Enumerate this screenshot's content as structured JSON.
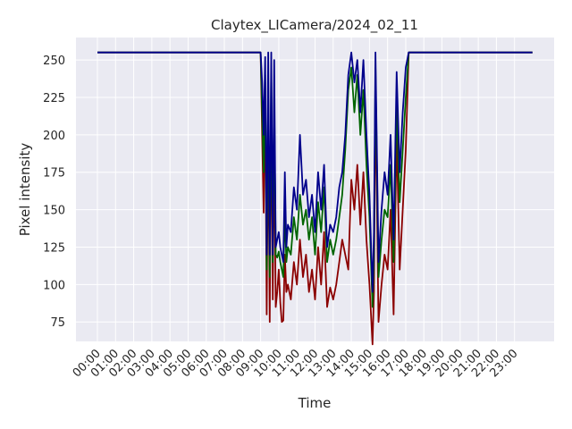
{
  "chart_data": {
    "type": "line",
    "title": "Claytex_LICamera/2024_02_11",
    "xlabel": "Time",
    "ylabel": "Pixel intensity",
    "x_tick_labels": [
      "00:00",
      "01:00",
      "02:00",
      "03:00",
      "04:00",
      "05:00",
      "06:00",
      "07:00",
      "08:00",
      "09:00",
      "10:00",
      "11:00",
      "12:00",
      "13:00",
      "14:00",
      "15:00",
      "16:00",
      "17:00",
      "18:00",
      "19:00",
      "20:00",
      "21:00",
      "22:00",
      "23:00"
    ],
    "y_ticks": [
      75,
      100,
      125,
      150,
      175,
      200,
      225,
      250
    ],
    "xlim": [
      "2024-02-11 00:00",
      "2024-02-12 00:00"
    ],
    "ylim": [
      62,
      265
    ],
    "grid": true,
    "colors": {
      "background": "#EAEAF2",
      "grid": "#FFFFFF",
      "red": "#8B0000",
      "green": "#006400",
      "blue": "#00008B"
    },
    "series": [
      {
        "color": "#8B0000",
        "x": [
          "2024-02-11 00:00",
          "2024-02-11 09:00",
          "2024-02-11 09:05",
          "2024-02-11 09:10",
          "2024-02-11 09:15",
          "2024-02-11 09:20",
          "2024-02-11 09:25",
          "2024-02-11 09:30",
          "2024-02-11 09:35",
          "2024-02-11 09:40",
          "2024-02-11 09:45",
          "2024-02-11 09:50",
          "2024-02-11 09:55",
          "2024-02-11 10:00",
          "2024-02-11 10:05",
          "2024-02-11 10:10",
          "2024-02-11 10:15",
          "2024-02-11 10:20",
          "2024-02-11 10:25",
          "2024-02-11 10:30",
          "2024-02-11 10:40",
          "2024-02-11 10:50",
          "2024-02-11 11:00",
          "2024-02-11 11:10",
          "2024-02-11 11:20",
          "2024-02-11 11:30",
          "2024-02-11 11:40",
          "2024-02-11 11:50",
          "2024-02-11 12:00",
          "2024-02-11 12:10",
          "2024-02-11 12:20",
          "2024-02-11 12:30",
          "2024-02-11 12:40",
          "2024-02-11 12:50",
          "2024-02-11 13:00",
          "2024-02-11 13:10",
          "2024-02-11 13:20",
          "2024-02-11 13:30",
          "2024-02-11 13:40",
          "2024-02-11 13:50",
          "2024-02-11 14:00",
          "2024-02-11 14:10",
          "2024-02-11 14:20",
          "2024-02-11 14:30",
          "2024-02-11 14:40",
          "2024-02-11 14:50",
          "2024-02-11 15:00",
          "2024-02-11 15:10",
          "2024-02-11 15:15",
          "2024-02-11 15:20",
          "2024-02-11 15:30",
          "2024-02-11 15:40",
          "2024-02-11 15:50",
          "2024-02-11 16:00",
          "2024-02-11 16:10",
          "2024-02-11 16:20",
          "2024-02-11 16:30",
          "2024-02-11 16:40",
          "2024-02-11 16:50",
          "2024-02-11 17:00",
          "2024-02-11 17:10",
          "2024-02-11 23:59"
        ],
        "y": [
          255,
          255,
          200,
          148,
          235,
          80,
          210,
          75,
          230,
          90,
          200,
          85,
          95,
          110,
          88,
          75,
          76,
          120,
          95,
          100,
          90,
          115,
          100,
          130,
          105,
          120,
          95,
          110,
          90,
          125,
          100,
          135,
          85,
          98,
          90,
          100,
          115,
          130,
          120,
          110,
          170,
          150,
          180,
          140,
          175,
          130,
          100,
          60,
          95,
          230,
          75,
          100,
          120,
          110,
          150,
          80,
          200,
          110,
          150,
          190,
          255,
          255
        ]
      },
      {
        "color": "#006400",
        "x": [
          "2024-02-11 00:00",
          "2024-02-11 09:00",
          "2024-02-11 09:05",
          "2024-02-11 09:10",
          "2024-02-11 09:15",
          "2024-02-11 09:20",
          "2024-02-11 09:25",
          "2024-02-11 09:30",
          "2024-02-11 09:35",
          "2024-02-11 09:40",
          "2024-02-11 09:45",
          "2024-02-11 09:50",
          "2024-02-11 09:55",
          "2024-02-11 10:00",
          "2024-02-11 10:05",
          "2024-02-11 10:10",
          "2024-02-11 10:15",
          "2024-02-11 10:20",
          "2024-02-11 10:25",
          "2024-02-11 10:30",
          "2024-02-11 10:40",
          "2024-02-11 10:50",
          "2024-02-11 11:00",
          "2024-02-11 11:10",
          "2024-02-11 11:20",
          "2024-02-11 11:30",
          "2024-02-11 11:40",
          "2024-02-11 11:50",
          "2024-02-11 12:00",
          "2024-02-11 12:10",
          "2024-02-11 12:20",
          "2024-02-11 12:30",
          "2024-02-11 12:40",
          "2024-02-11 12:50",
          "2024-02-11 13:00",
          "2024-02-11 13:10",
          "2024-02-11 13:20",
          "2024-02-11 13:30",
          "2024-02-11 13:40",
          "2024-02-11 13:50",
          "2024-02-11 14:00",
          "2024-02-11 14:10",
          "2024-02-11 14:20",
          "2024-02-11 14:30",
          "2024-02-11 14:40",
          "2024-02-11 14:50",
          "2024-02-11 15:00",
          "2024-02-11 15:10",
          "2024-02-11 15:15",
          "2024-02-11 15:20",
          "2024-02-11 15:30",
          "2024-02-11 15:40",
          "2024-02-11 15:50",
          "2024-02-11 16:00",
          "2024-02-11 16:10",
          "2024-02-11 16:20",
          "2024-02-11 16:30",
          "2024-02-11 16:40",
          "2024-02-11 16:50",
          "2024-02-11 17:00",
          "2024-02-11 17:10",
          "2024-02-11 23:59"
        ],
        "y": [
          255,
          255,
          215,
          175,
          240,
          110,
          225,
          105,
          245,
          115,
          225,
          120,
          118,
          122,
          115,
          110,
          105,
          150,
          115,
          125,
          120,
          145,
          130,
          160,
          140,
          150,
          130,
          145,
          120,
          155,
          135,
          165,
          115,
          130,
          120,
          130,
          145,
          160,
          190,
          230,
          245,
          215,
          240,
          200,
          230,
          180,
          145,
          85,
          120,
          245,
          105,
          130,
          150,
          145,
          180,
          115,
          220,
          155,
          190,
          225,
          255,
          255
        ]
      },
      {
        "color": "#00008B",
        "x": [
          "2024-02-11 00:00",
          "2024-02-11 09:00",
          "2024-02-11 09:05",
          "2024-02-11 09:10",
          "2024-02-11 09:15",
          "2024-02-11 09:20",
          "2024-02-11 09:25",
          "2024-02-11 09:30",
          "2024-02-11 09:35",
          "2024-02-11 09:40",
          "2024-02-11 09:45",
          "2024-02-11 09:50",
          "2024-02-11 09:55",
          "2024-02-11 10:00",
          "2024-02-11 10:05",
          "2024-02-11 10:10",
          "2024-02-11 10:15",
          "2024-02-11 10:20",
          "2024-02-11 10:25",
          "2024-02-11 10:30",
          "2024-02-11 10:40",
          "2024-02-11 10:50",
          "2024-02-11 11:00",
          "2024-02-11 11:10",
          "2024-02-11 11:20",
          "2024-02-11 11:30",
          "2024-02-11 11:40",
          "2024-02-11 11:50",
          "2024-02-11 12:00",
          "2024-02-11 12:10",
          "2024-02-11 12:20",
          "2024-02-11 12:30",
          "2024-02-11 12:40",
          "2024-02-11 12:50",
          "2024-02-11 13:00",
          "2024-02-11 13:10",
          "2024-02-11 13:20",
          "2024-02-11 13:30",
          "2024-02-11 13:40",
          "2024-02-11 13:50",
          "2024-02-11 14:00",
          "2024-02-11 14:10",
          "2024-02-11 14:20",
          "2024-02-11 14:30",
          "2024-02-11 14:40",
          "2024-02-11 14:50",
          "2024-02-11 15:00",
          "2024-02-11 15:10",
          "2024-02-11 15:15",
          "2024-02-11 15:20",
          "2024-02-11 15:30",
          "2024-02-11 15:40",
          "2024-02-11 15:50",
          "2024-02-11 16:00",
          "2024-02-11 16:10",
          "2024-02-11 16:20",
          "2024-02-11 16:30",
          "2024-02-11 16:40",
          "2024-02-11 16:50",
          "2024-02-11 17:00",
          "2024-02-11 17:10",
          "2024-02-11 23:59"
        ],
        "y": [
          255,
          255,
          235,
          200,
          252,
          120,
          255,
          120,
          255,
          120,
          250,
          125,
          130,
          135,
          125,
          120,
          115,
          175,
          125,
          140,
          135,
          165,
          150,
          200,
          160,
          170,
          145,
          160,
          135,
          175,
          150,
          180,
          125,
          140,
          135,
          145,
          165,
          175,
          200,
          240,
          255,
          235,
          250,
          215,
          250,
          200,
          160,
          95,
          135,
          255,
          115,
          150,
          175,
          160,
          200,
          130,
          242,
          175,
          215,
          245,
          255,
          255
        ]
      }
    ]
  }
}
